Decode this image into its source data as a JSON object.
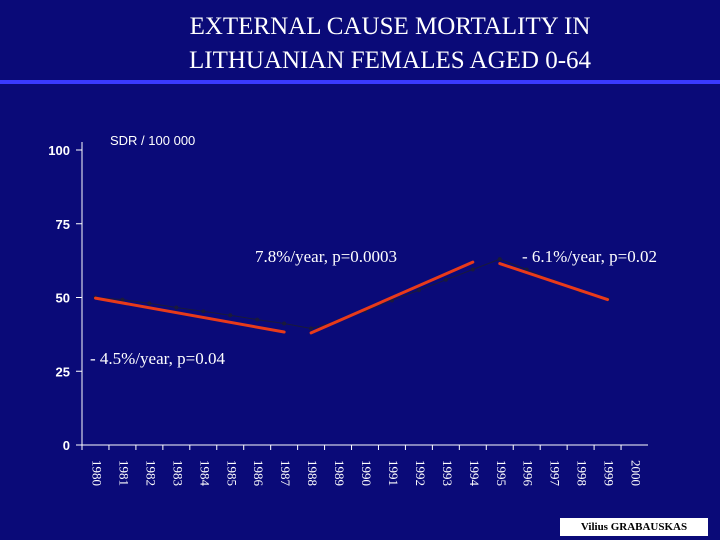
{
  "slide": {
    "title_line1": "EXTERNAL CAUSE MORTALITY  IN",
    "title_line2": "LITHUANIAN FEMALES AGED 0-64",
    "credit": "Vilius GRABAUSKAS"
  },
  "colors": {
    "background": "#0a0a78",
    "trend_line": "#e83a1a",
    "axis": "#ffffff",
    "text": "#ffffff"
  },
  "chart_data": {
    "type": "line",
    "title": "",
    "ylabel": "SDR / 100 000",
    "xlabel": "",
    "ylim": [
      0,
      100
    ],
    "yticks": [
      0,
      25,
      50,
      75,
      100
    ],
    "grid": false,
    "categories": [
      "1980",
      "1981",
      "1982",
      "1983",
      "1984",
      "1985",
      "1986",
      "1987",
      "1988",
      "1989",
      "1990",
      "1991",
      "1992",
      "1993",
      "1994",
      "1995",
      "1996",
      "1997",
      "1998",
      "1999",
      "2000"
    ],
    "series": [
      {
        "values": [
          50.0,
          49.3,
          48.0,
          46.6,
          45.3,
          44.0,
          42.5,
          41.2,
          39.5,
          42.0,
          45.5,
          49.0,
          52.5,
          56.0,
          59.5,
          63.0,
          59.5,
          55.5,
          52.0,
          49.5,
          null
        ]
      }
    ],
    "trend_segments": [
      {
        "start": "1980",
        "end": "1987",
        "y_start": 49.8,
        "y_end": 38.3
      },
      {
        "start": "1988",
        "end": "1994",
        "y_start": 38.0,
        "y_end": 62.0
      },
      {
        "start": "1995",
        "end": "1999",
        "y_start": 61.5,
        "y_end": 49.3
      }
    ],
    "annotations": [
      "7.8%/year, p=0.0003",
      "- 6.1%/year, p=0.02",
      "- 4.5%/year, p=0.04"
    ]
  }
}
